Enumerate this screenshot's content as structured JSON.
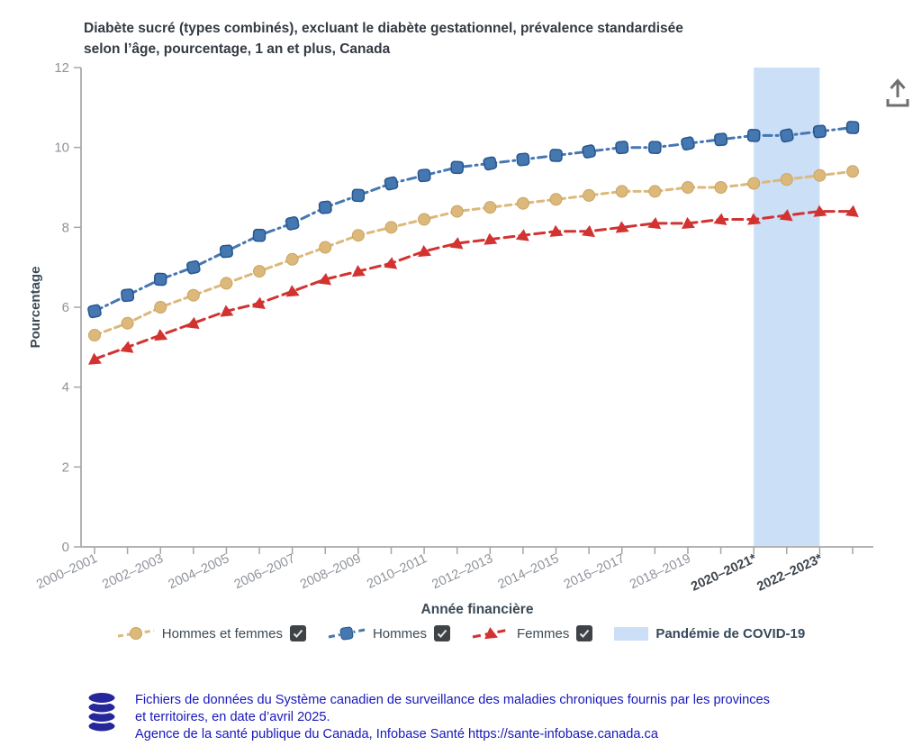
{
  "title": {
    "lines": [
      "Diabète sucré (types combinés), excluant le diabète gestationnel, prévalence standardisée",
      "selon l’âge, pourcentage, 1 an et plus, Canada"
    ]
  },
  "icons": {
    "export": "arrow-up-from-tray",
    "source": "database-cylinder",
    "checkbox_state": "checked"
  },
  "colors": {
    "title_text": "#333a42",
    "axis_text": "#3c4a56",
    "tick_text": "#8f939b",
    "bold_tick_text": "#3d454d",
    "axis_line": "#b3b3b3",
    "footer_text": "#1717bb",
    "checkbox_bg": "#3f4347",
    "covid_band": "#cbdff7"
  },
  "chart_data": {
    "type": "line",
    "title": "Diabète sucré (types combinés), excluant le diabète gestationnel, prévalence standardisée selon l’âge, pourcentage, 1 an et plus, Canada",
    "xlabel": "Année financière",
    "ylabel": "Pourcentage",
    "ylim": [
      0,
      12
    ],
    "yticks": [
      0,
      2,
      4,
      6,
      8,
      10,
      12
    ],
    "grid": false,
    "legend_position": "bottom",
    "xtick_label_every": 2,
    "categories": [
      "2000–2001",
      "2001–2002",
      "2002–2003",
      "2003–2004",
      "2004–2005",
      "2005–2006",
      "2006–2007",
      "2007–2008",
      "2008–2009",
      "2009–2010",
      "2010–2011",
      "2011–2012",
      "2012–2013",
      "2013–2014",
      "2014–2015",
      "2015–2016",
      "2016–2017",
      "2017–2018",
      "2018–2019",
      "2019–2020",
      "2020–2021*",
      "2021–2022",
      "2022–2023*",
      "2023–2024"
    ],
    "series": [
      {
        "name": "Hommes et femmes",
        "marker": "circle",
        "color": "#dcb97b",
        "edge": "#c9a361",
        "dash": "7 5",
        "values": [
          5.3,
          5.6,
          6.0,
          6.3,
          6.6,
          6.9,
          7.2,
          7.5,
          7.8,
          8.0,
          8.2,
          8.4,
          8.5,
          8.6,
          8.7,
          8.8,
          8.9,
          8.9,
          9.0,
          9.0,
          9.1,
          9.2,
          9.3,
          9.4
        ]
      },
      {
        "name": "Hommes",
        "marker": "square",
        "color": "#4577b1",
        "edge": "#27568f",
        "dash": "9 5 2 5",
        "values": [
          5.9,
          6.3,
          6.7,
          7.0,
          7.4,
          7.8,
          8.1,
          8.5,
          8.8,
          9.1,
          9.3,
          9.5,
          9.6,
          9.7,
          9.8,
          9.9,
          10.0,
          10.0,
          10.1,
          10.2,
          10.3,
          10.3,
          10.4,
          10.5
        ]
      },
      {
        "name": "Femmes",
        "marker": "triangle",
        "color": "#d23331",
        "edge": "#b22422",
        "dash": "11 6",
        "values": [
          4.7,
          5.0,
          5.3,
          5.6,
          5.9,
          6.1,
          6.4,
          6.7,
          6.9,
          7.1,
          7.4,
          7.6,
          7.7,
          7.8,
          7.9,
          7.9,
          8.0,
          8.1,
          8.1,
          8.2,
          8.2,
          8.3,
          8.4,
          8.4
        ]
      }
    ],
    "band": {
      "label": "Pandémie de COVID-19",
      "color": "#cbdff7",
      "from_index": 20,
      "to_index": 22,
      "from_category": "2020–2021*",
      "to_category": "2022–2023*"
    }
  },
  "legend": {
    "items": [
      {
        "label": "Hommes et femmes",
        "checked": true
      },
      {
        "label": "Hommes",
        "checked": true
      },
      {
        "label": "Femmes",
        "checked": true
      }
    ],
    "band_label": "Pandémie de COVID-19"
  },
  "footer": {
    "lines": [
      "Fichiers de données du Système canadien de surveillance des maladies chroniques fournis par les provinces",
      "et territoires, en date d’avril 2025."
    ],
    "line3_prefix": "Agence de la santé publique du Canada, Infobase Santé ",
    "url": "https://sante-infobase.canada.ca"
  }
}
